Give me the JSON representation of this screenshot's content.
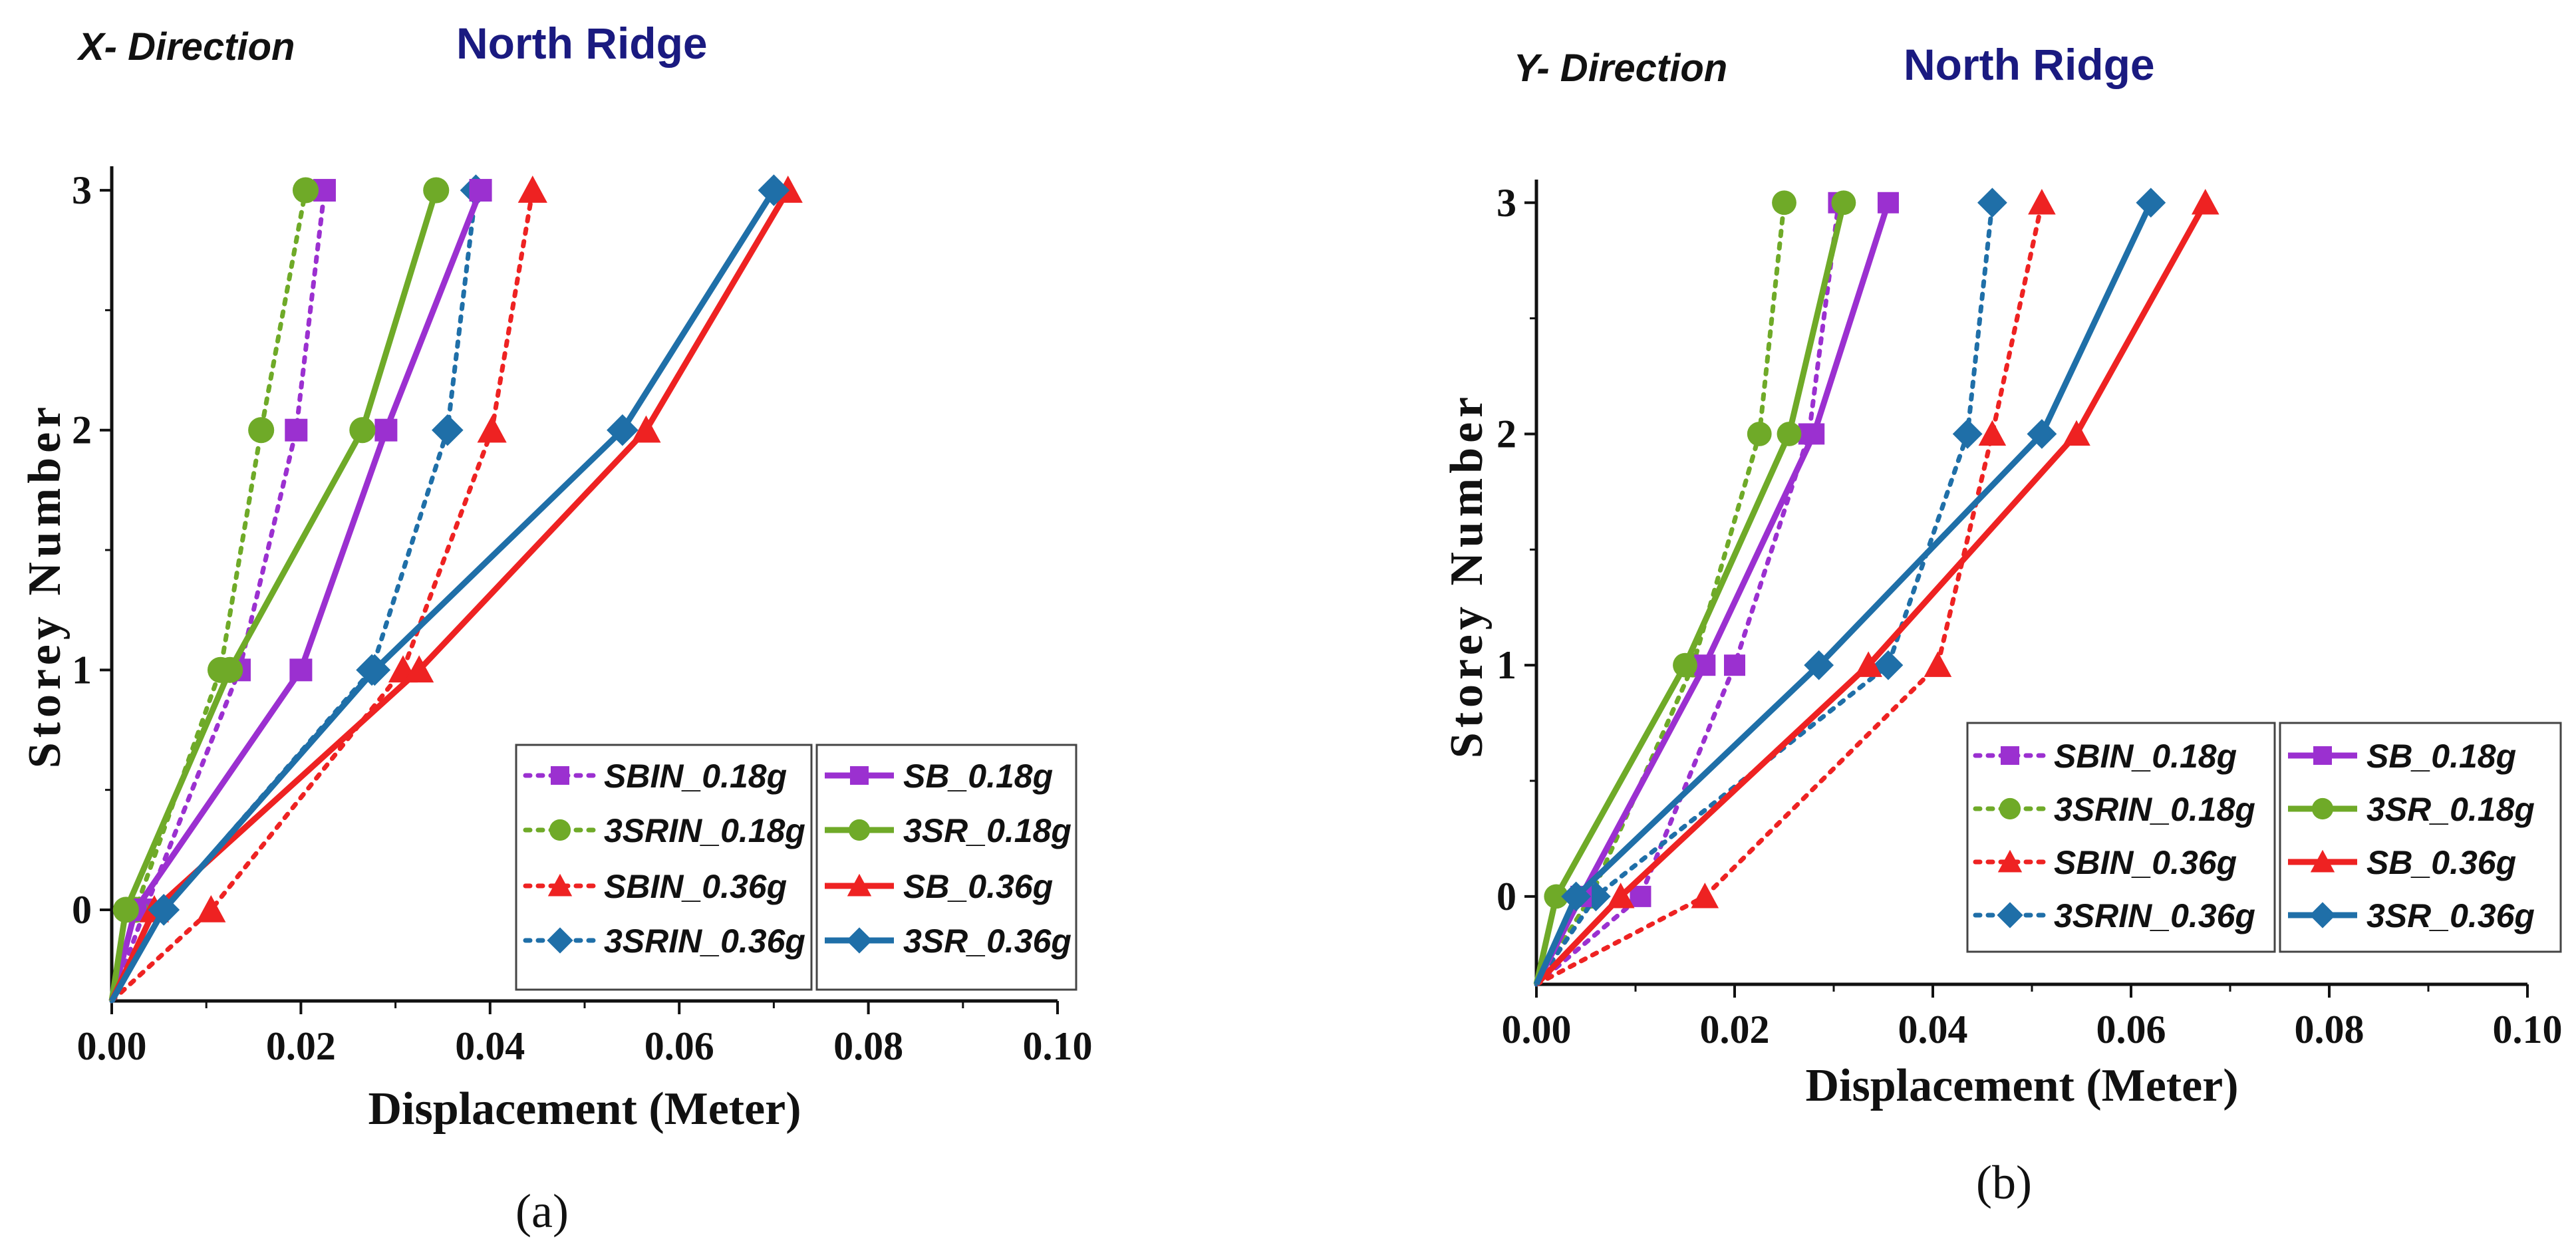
{
  "legend_labels": {
    "SBIN_018": "SBIN_0.18g",
    "SRIN_018": "3SRIN_0.18g",
    "SBIN_036": "SBIN_0.36g",
    "SRIN_036": "3SRIN_0.36g",
    "SB_018": "SB_0.18g",
    "SR_018": "3SR_0.18g",
    "SB_036": "SB_0.36g",
    "SR_036": "3SR_0.36g"
  },
  "chart_data": [
    {
      "type": "line",
      "panel_label": "(a)",
      "direction_label": "X- Direction",
      "title": "North Ridge",
      "xlabel": "Displacement (Meter)",
      "ylabel": "Storey Number",
      "xlim": [
        0,
        0.1
      ],
      "ylim": [
        -0.38,
        3.1
      ],
      "xticks": [
        "0.00",
        "0.02",
        "0.04",
        "0.06",
        "0.08",
        "0.10"
      ],
      "yticks": [
        "0",
        "1",
        "2",
        "3"
      ],
      "series": [
        {
          "id": "SBIN_018",
          "name": "SBIN_0.18g",
          "color": "#9b30d0",
          "style": "dotted",
          "marker": "square",
          "points": [
            [
              0,
              -0.38
            ],
            [
              0.0035,
              0
            ],
            [
              0.0135,
              1
            ],
            [
              0.0195,
              2
            ],
            [
              0.0225,
              3
            ]
          ]
        },
        {
          "id": "SRIN_018",
          "name": "3SRIN_0.18g",
          "color": "#6faa28",
          "style": "dotted",
          "marker": "circle",
          "points": [
            [
              0,
              -0.38
            ],
            [
              0.0025,
              0
            ],
            [
              0.0115,
              1
            ],
            [
              0.0158,
              2
            ],
            [
              0.0205,
              3
            ]
          ]
        },
        {
          "id": "SBIN_036",
          "name": "SBIN_0.36g",
          "color": "#ee2222",
          "style": "dotted",
          "marker": "triangle",
          "points": [
            [
              0,
              -0.38
            ],
            [
              0.0105,
              0
            ],
            [
              0.0308,
              1
            ],
            [
              0.0402,
              2
            ],
            [
              0.0445,
              3
            ]
          ]
        },
        {
          "id": "SRIN_036",
          "name": "3SRIN_0.36g",
          "color": "#1f6fa8",
          "style": "dotted",
          "marker": "diamond",
          "points": [
            [
              0,
              -0.38
            ],
            [
              0.0055,
              0
            ],
            [
              0.0275,
              1
            ],
            [
              0.0355,
              2
            ],
            [
              0.0385,
              3
            ]
          ]
        },
        {
          "id": "SB_018",
          "name": "SB_0.18g",
          "color": "#9b30d0",
          "style": "solid",
          "marker": "square",
          "points": [
            [
              0,
              -0.38
            ],
            [
              0.0025,
              0
            ],
            [
              0.02,
              1
            ],
            [
              0.029,
              2
            ],
            [
              0.039,
              3
            ]
          ]
        },
        {
          "id": "SR_018",
          "name": "3SR_0.18g",
          "color": "#6faa28",
          "style": "solid",
          "marker": "circle",
          "points": [
            [
              0,
              -0.38
            ],
            [
              0.0015,
              0
            ],
            [
              0.0125,
              1
            ],
            [
              0.0265,
              2
            ],
            [
              0.0343,
              3
            ]
          ]
        },
        {
          "id": "SB_036",
          "name": "SB_0.36g",
          "color": "#ee2222",
          "style": "solid",
          "marker": "triangle",
          "points": [
            [
              0,
              -0.38
            ],
            [
              0.0045,
              0
            ],
            [
              0.0325,
              1
            ],
            [
              0.0565,
              2
            ],
            [
              0.0715,
              3
            ]
          ]
        },
        {
          "id": "SR_036",
          "name": "3SR_0.36g",
          "color": "#1f6fa8",
          "style": "solid",
          "marker": "diamond",
          "points": [
            [
              0,
              -0.38
            ],
            [
              0.0055,
              0
            ],
            [
              0.0278,
              1
            ],
            [
              0.054,
              2
            ],
            [
              0.07,
              3
            ]
          ]
        }
      ]
    },
    {
      "type": "line",
      "panel_label": "(b)",
      "direction_label": "Y- Direction",
      "title": "North Ridge",
      "xlabel": "Displacement (Meter)",
      "ylabel": "Storey Number",
      "xlim": [
        0,
        0.1
      ],
      "ylim": [
        -0.38,
        3.1
      ],
      "xticks": [
        "0.00",
        "0.02",
        "0.04",
        "0.06",
        "0.08",
        "0.10"
      ],
      "yticks": [
        "0",
        "1",
        "2",
        "3"
      ],
      "series": [
        {
          "id": "SBIN_018",
          "name": "SBIN_0.18g",
          "color": "#9b30d0",
          "style": "dotted",
          "marker": "square",
          "points": [
            [
              0,
              -0.38
            ],
            [
              0.0105,
              0
            ],
            [
              0.02,
              1
            ],
            [
              0.0275,
              2
            ],
            [
              0.0305,
              3
            ]
          ]
        },
        {
          "id": "SRIN_018",
          "name": "3SRIN_0.18g",
          "color": "#6faa28",
          "style": "dotted",
          "marker": "circle",
          "points": [
            [
              0,
              -0.38
            ],
            [
              0.0055,
              0
            ],
            [
              0.0158,
              1
            ],
            [
              0.0225,
              2
            ],
            [
              0.025,
              3
            ]
          ]
        },
        {
          "id": "SBIN_036",
          "name": "SBIN_0.36g",
          "color": "#ee2222",
          "style": "dotted",
          "marker": "triangle",
          "points": [
            [
              0,
              -0.38
            ],
            [
              0.017,
              0
            ],
            [
              0.0405,
              1
            ],
            [
              0.046,
              2
            ],
            [
              0.051,
              3
            ]
          ]
        },
        {
          "id": "SRIN_036",
          "name": "3SRIN_0.36g",
          "color": "#1f6fa8",
          "style": "dotted",
          "marker": "diamond",
          "points": [
            [
              0,
              -0.38
            ],
            [
              0.006,
              0
            ],
            [
              0.0355,
              1
            ],
            [
              0.0435,
              2
            ],
            [
              0.046,
              3
            ]
          ]
        },
        {
          "id": "SB_018",
          "name": "SB_0.18g",
          "color": "#9b30d0",
          "style": "solid",
          "marker": "square",
          "points": [
            [
              0,
              -0.38
            ],
            [
              0.0045,
              0
            ],
            [
              0.017,
              1
            ],
            [
              0.028,
              2
            ],
            [
              0.0355,
              3
            ]
          ]
        },
        {
          "id": "SR_018",
          "name": "3SR_0.18g",
          "color": "#6faa28",
          "style": "solid",
          "marker": "circle",
          "points": [
            [
              0,
              -0.38
            ],
            [
              0.002,
              0
            ],
            [
              0.015,
              1
            ],
            [
              0.0255,
              2
            ],
            [
              0.031,
              3
            ]
          ]
        },
        {
          "id": "SB_036",
          "name": "SB_0.36g",
          "color": "#ee2222",
          "style": "solid",
          "marker": "triangle",
          "points": [
            [
              0,
              -0.38
            ],
            [
              0.0085,
              0
            ],
            [
              0.0335,
              1
            ],
            [
              0.0545,
              2
            ],
            [
              0.0675,
              3
            ]
          ]
        },
        {
          "id": "SR_036",
          "name": "3SR_0.36g",
          "color": "#1f6fa8",
          "style": "solid",
          "marker": "diamond",
          "points": [
            [
              0,
              -0.38
            ],
            [
              0.004,
              0
            ],
            [
              0.0285,
              1
            ],
            [
              0.051,
              2
            ],
            [
              0.062,
              3
            ]
          ]
        }
      ]
    }
  ]
}
